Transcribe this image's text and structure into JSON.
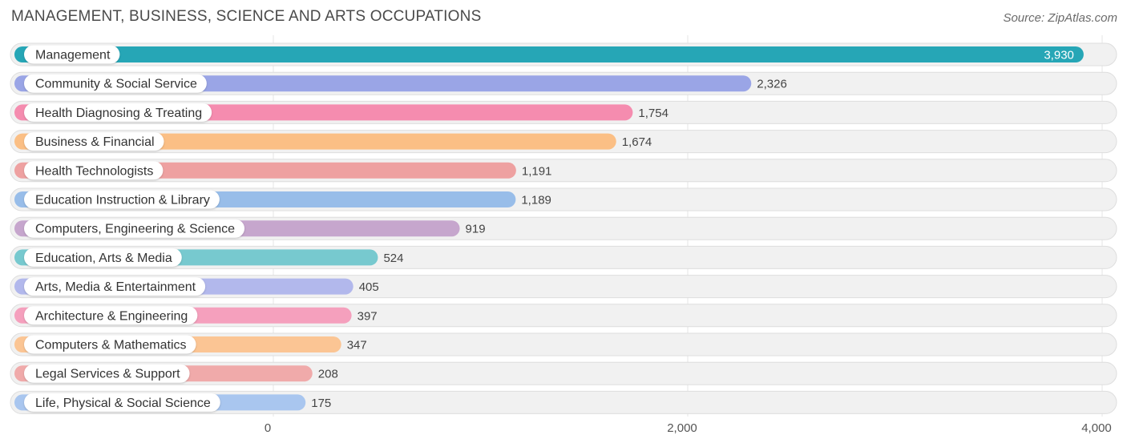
{
  "header": {
    "title": "MANAGEMENT, BUSINESS, SCIENCE AND ARTS OCCUPATIONS",
    "source": "Source: ZipAtlas.com"
  },
  "chart_data": {
    "type": "bar",
    "orientation": "horizontal",
    "title": "MANAGEMENT, BUSINESS, SCIENCE AND ARTS OCCUPATIONS",
    "xlabel": "",
    "ylabel": "",
    "xlim": [
      0,
      4000
    ],
    "x_ticks": [
      0,
      2000,
      4000
    ],
    "x_tick_labels": [
      "0",
      "2,000",
      "4,000"
    ],
    "grid": true,
    "categories": [
      "Management",
      "Community & Social Service",
      "Health Diagnosing & Treating",
      "Business & Financial",
      "Health Technologists",
      "Education Instruction & Library",
      "Computers, Engineering & Science",
      "Education, Arts & Media",
      "Arts, Media & Entertainment",
      "Architecture & Engineering",
      "Computers & Mathematics",
      "Legal Services & Support",
      "Life, Physical & Social Science"
    ],
    "values": [
      3930,
      2326,
      1754,
      1674,
      1191,
      1189,
      919,
      524,
      405,
      397,
      347,
      208,
      175
    ],
    "value_labels": [
      "3,930",
      "2,326",
      "1,754",
      "1,674",
      "1,191",
      "1,189",
      "919",
      "524",
      "405",
      "397",
      "347",
      "208",
      "175"
    ],
    "colors": [
      "#26a6b6",
      "#9aa5e6",
      "#f58caf",
      "#fbbf85",
      "#eea1a1",
      "#98bde9",
      "#c6a6cd",
      "#77c9cf",
      "#b2b8ec",
      "#f5a0bd",
      "#fbc594",
      "#f0aaaa",
      "#a9c6ef"
    ]
  }
}
